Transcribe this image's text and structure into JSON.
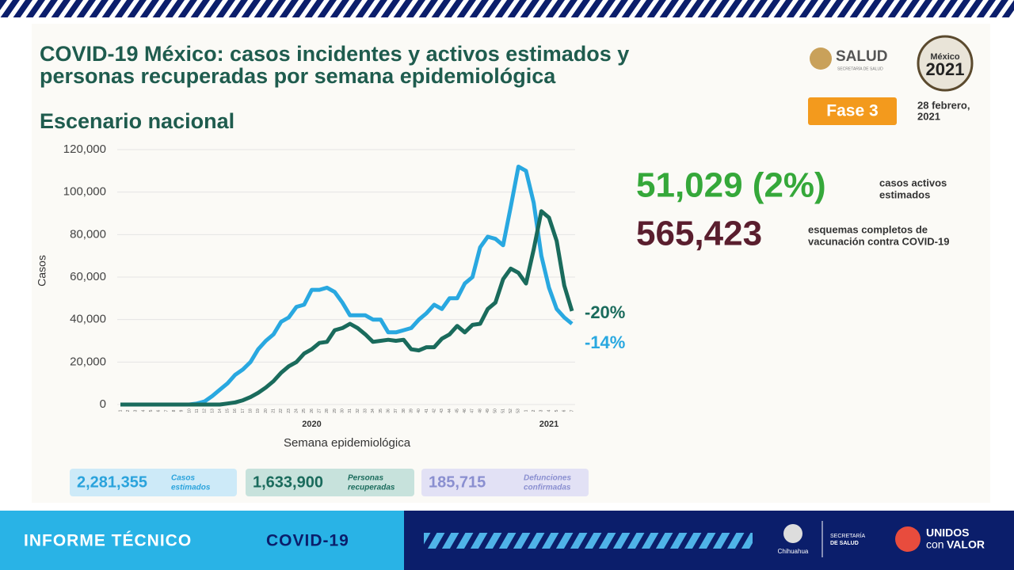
{
  "header": {
    "title_line1": "COVID-19 México: casos incidentes y activos estimados y",
    "title_line2": "personas recuperadas por semana epidemiológica",
    "subtitle": "Escenario nacional"
  },
  "logos": {
    "salud": "SALUD",
    "salud_sub": "SECRETARÍA DE SALUD",
    "mexico": "México",
    "year": "2021"
  },
  "phase": "Fase 3",
  "date_line1": "28 febrero,",
  "date_line2": "2021",
  "stats": [
    {
      "value": "51,029 (2%)",
      "label_line1": "casos activos",
      "label_line2": "estimados"
    },
    {
      "value": "565,423",
      "label_line1": "esquemas completos de",
      "label_line2": "vacunación contra COVID-19"
    }
  ],
  "chart_data": {
    "type": "line",
    "y_label": "Casos",
    "x_label": "Semana epidemiológica",
    "year_labels": [
      "2020",
      "2021"
    ],
    "categories": [
      "1",
      "2",
      "3",
      "4",
      "5",
      "6",
      "7",
      "8",
      "9",
      "10",
      "11",
      "12",
      "13",
      "14",
      "15",
      "16",
      "17",
      "18",
      "19",
      "20",
      "21",
      "22",
      "23",
      "24",
      "25",
      "26",
      "27",
      "28",
      "29",
      "30",
      "31",
      "32",
      "33",
      "34",
      "35",
      "36",
      "37",
      "38",
      "39",
      "40",
      "41",
      "42",
      "43",
      "44",
      "45",
      "46",
      "47",
      "48",
      "49",
      "50",
      "51",
      "52",
      "53",
      "1",
      "2",
      "3",
      "4",
      "5",
      "6",
      "7"
    ],
    "series": [
      {
        "color": "#29a8e0",
        "end_label": "-14%",
        "values": [
          0,
          0,
          0,
          0,
          0,
          0,
          0,
          0,
          0,
          0,
          500,
          1500,
          4000,
          7000,
          10000,
          14000,
          16500,
          20000,
          26000,
          30000,
          33000,
          39000,
          41000,
          46000,
          47000,
          54000,
          54000,
          55000,
          53000,
          48000,
          42000,
          42000,
          42000,
          40000,
          40000,
          34000,
          34000,
          35000,
          36000,
          40000,
          43000,
          47000,
          45000,
          50000,
          50000,
          57000,
          60000,
          74000,
          79000,
          78000,
          75000,
          93000,
          112000,
          110000,
          95000,
          70000,
          55000,
          45000,
          41000,
          38000
        ]
      },
      {
        "color": "#1a6b5c",
        "end_label": "-20%",
        "values": [
          0,
          0,
          0,
          0,
          0,
          0,
          0,
          0,
          0,
          0,
          0,
          0,
          0,
          0,
          500,
          1000,
          2000,
          3500,
          5500,
          8000,
          11000,
          15000,
          18000,
          20000,
          24000,
          26000,
          29000,
          29500,
          35000,
          36000,
          38000,
          36000,
          33000,
          29500,
          30000,
          30500,
          30000,
          30500,
          26000,
          25500,
          27000,
          27000,
          31000,
          33000,
          37000,
          34000,
          37500,
          38000,
          45000,
          48000,
          59000,
          64000,
          62000,
          57000,
          73000,
          91000,
          88000,
          77000,
          56000,
          44000
        ]
      }
    ],
    "ylim": [
      0,
      120000
    ],
    "yticks": [
      0,
      {
        "value": 20000,
        "label": "20,000"
      },
      {
        "value": 40000,
        "label": "40,000"
      },
      {
        "value": 60000,
        "label": "60,000"
      },
      {
        "value": 80000,
        "label": "80,000"
      },
      {
        "value": 100000,
        "label": "100,000"
      },
      {
        "value": 120000,
        "label": "120,000"
      }
    ],
    "grid": true
  },
  "totals": [
    {
      "value": "2,281,355",
      "label_line1": "Casos",
      "label_line2": "estimados"
    },
    {
      "value": "1,633,900",
      "label_line1": "Personas",
      "label_line2": "recuperadas"
    },
    {
      "value": "185,715",
      "label_line1": "Defunciones",
      "label_line2": "confirmadas"
    }
  ],
  "footer": {
    "left": "INFORME TÉCNICO",
    "left_accent": "COVID-19",
    "state": "Chihuahua",
    "secretaria_line1": "SECRETARÍA",
    "secretaria_line2": "DE SALUD",
    "brand_line1": "UNIDOS",
    "brand_con": "con",
    "brand_valor": "VALOR"
  }
}
